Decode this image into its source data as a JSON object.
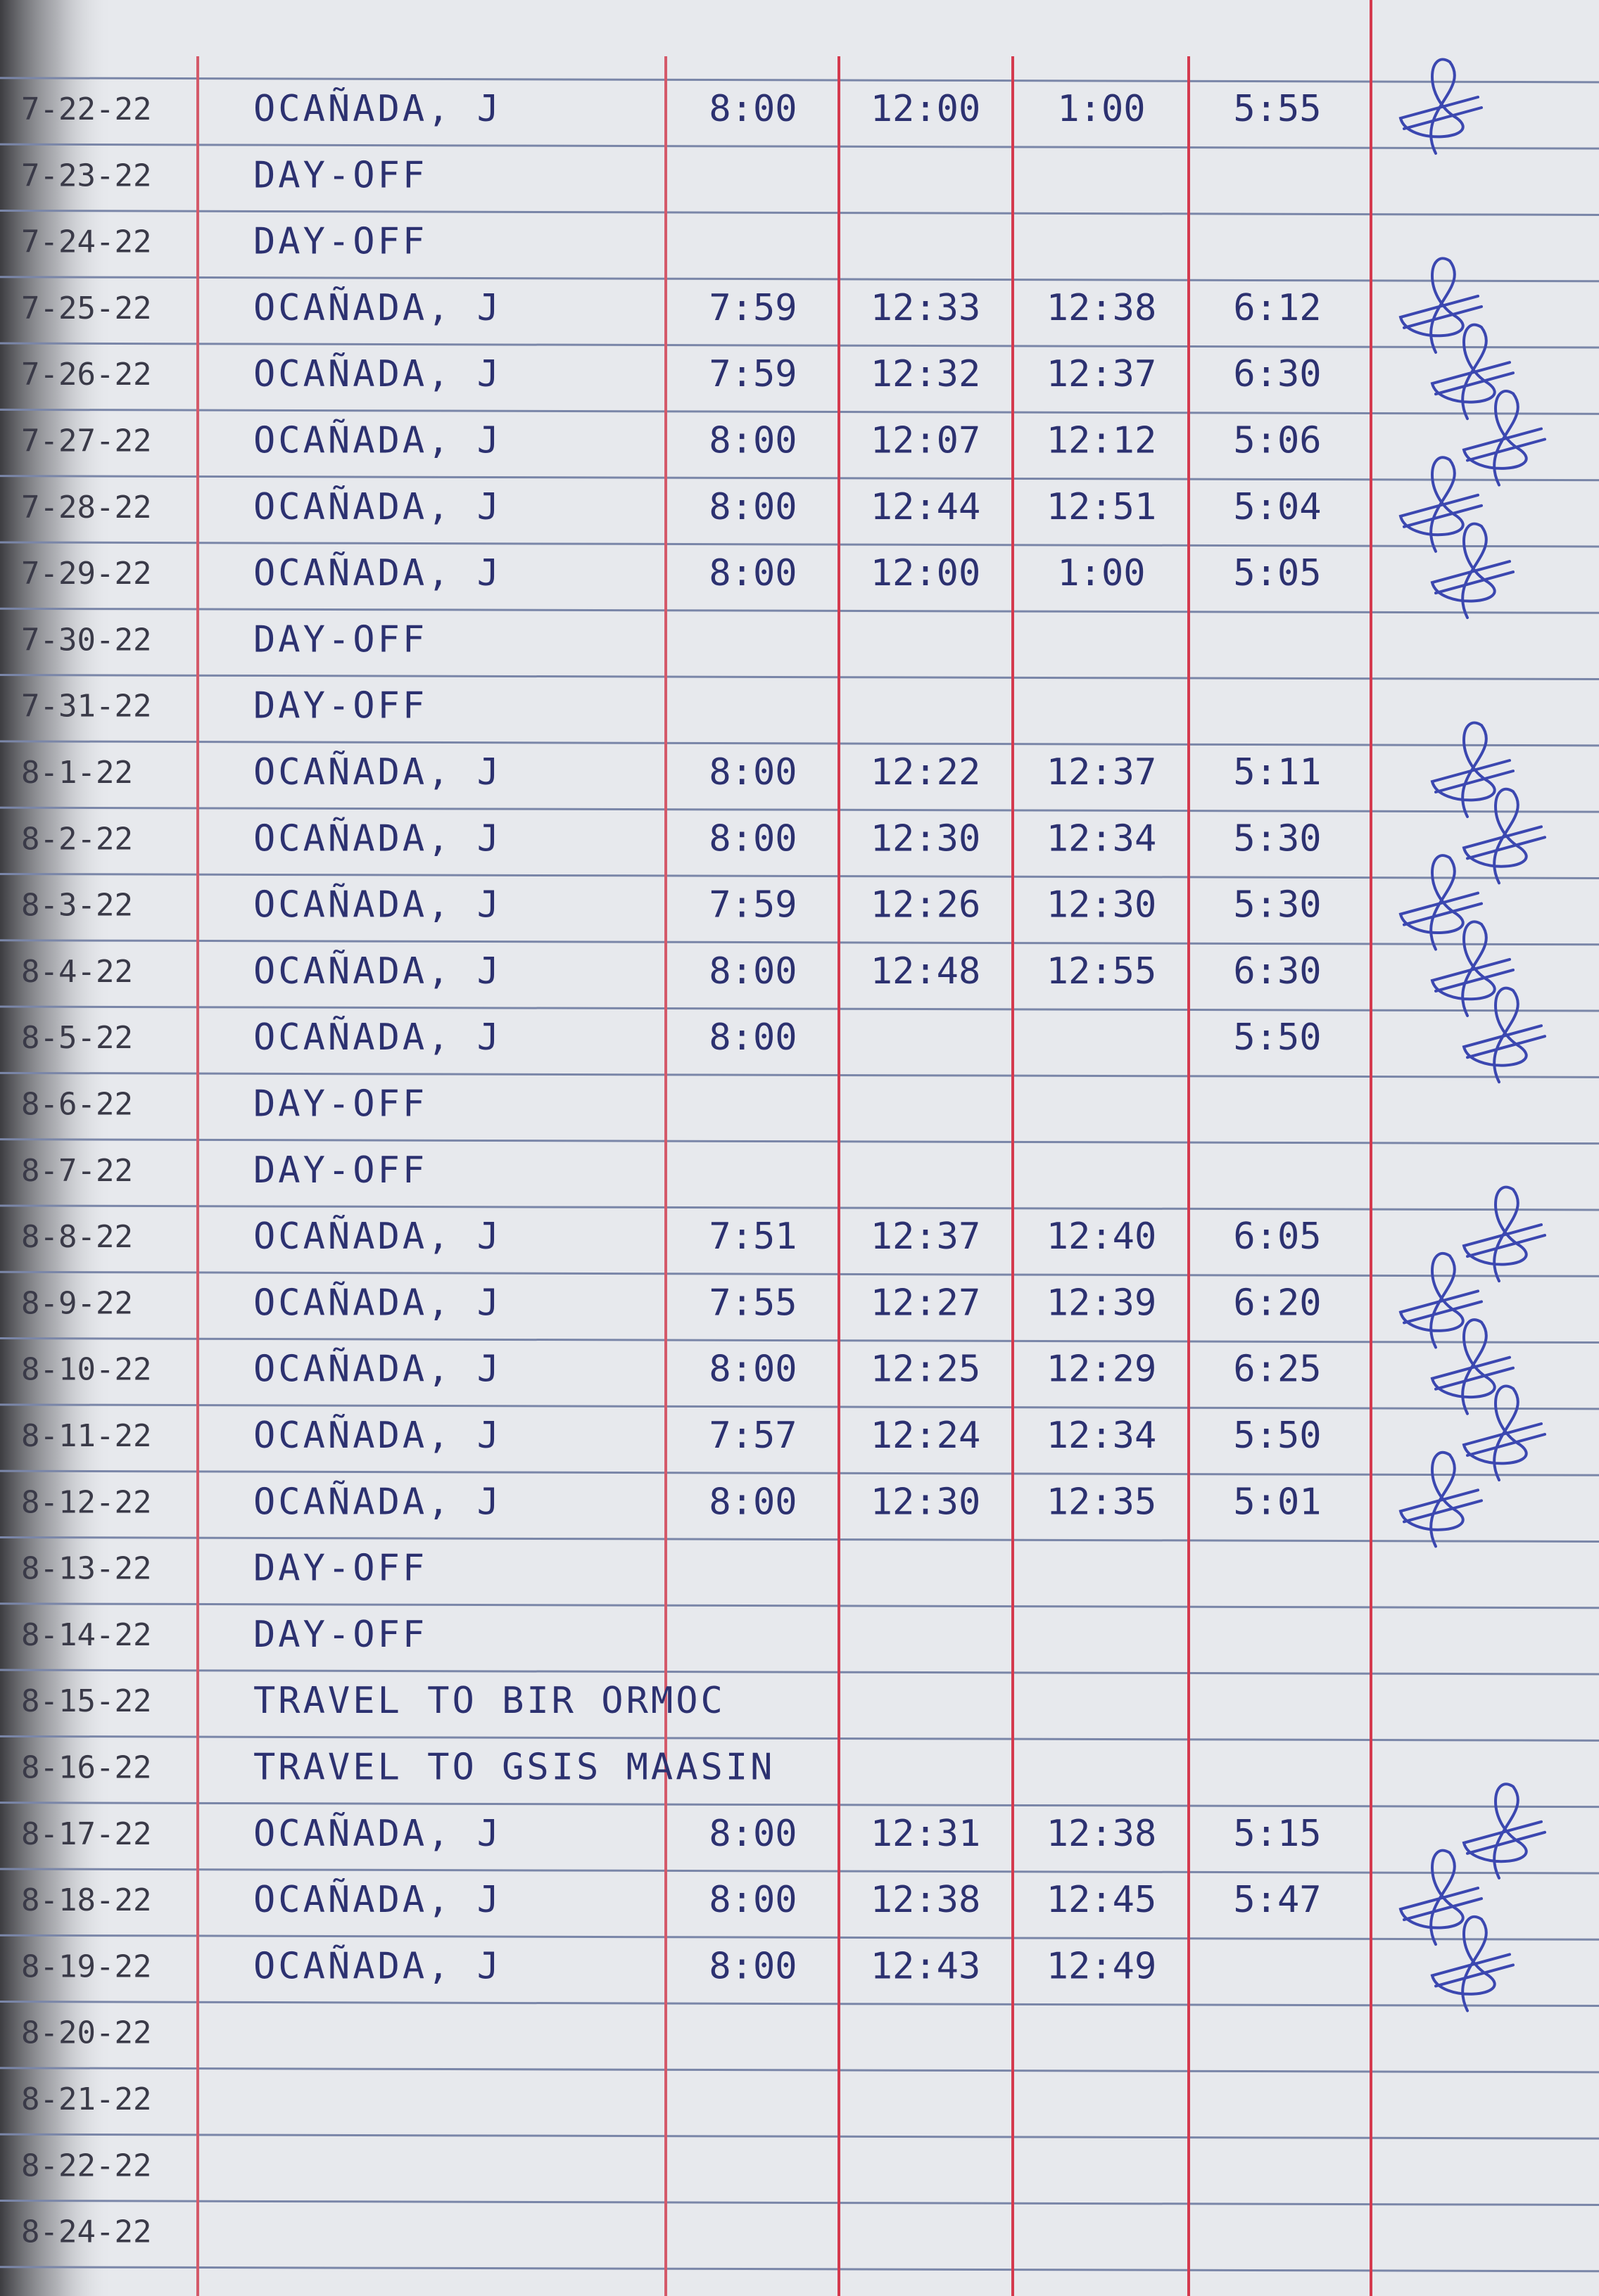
{
  "rows": [
    {
      "date": "7-22-22",
      "name": "OCAÑADA, J",
      "am_in": "8:00",
      "am_out": "12:00",
      "pm_in": "1:00",
      "pm_out": "5:55"
    },
    {
      "date": "7-23-22",
      "name": "DAY-OFF"
    },
    {
      "date": "7-24-22",
      "name": "DAY-OFF"
    },
    {
      "date": "7-25-22",
      "name": "OCAÑADA, J",
      "am_in": "7:59",
      "am_out": "12:33",
      "pm_in": "12:38",
      "pm_out": "6:12"
    },
    {
      "date": "7-26-22",
      "name": "OCAÑADA, J",
      "am_in": "7:59",
      "am_out": "12:32",
      "pm_in": "12:37",
      "pm_out": "6:30"
    },
    {
      "date": "7-27-22",
      "name": "OCAÑADA, J",
      "am_in": "8:00",
      "am_out": "12:07",
      "pm_in": "12:12",
      "pm_out": "5:06"
    },
    {
      "date": "7-28-22",
      "name": "OCAÑADA, J",
      "am_in": "8:00",
      "am_out": "12:44",
      "pm_in": "12:51",
      "pm_out": "5:04"
    },
    {
      "date": "7-29-22",
      "name": "OCAÑADA, J",
      "am_in": "8:00",
      "am_out": "12:00",
      "pm_in": "1:00",
      "pm_out": "5:05"
    },
    {
      "date": "7-30-22",
      "name": "DAY-OFF"
    },
    {
      "date": "7-31-22",
      "name": "DAY-OFF"
    },
    {
      "date": "8-1-22",
      "name": "OCAÑADA, J",
      "am_in": "8:00",
      "am_out": "12:22",
      "pm_in": "12:37",
      "pm_out": "5:11"
    },
    {
      "date": "8-2-22",
      "name": "OCAÑADA, J",
      "am_in": "8:00",
      "am_out": "12:30",
      "pm_in": "12:34",
      "pm_out": "5:30"
    },
    {
      "date": "8-3-22",
      "name": "OCAÑADA, J",
      "am_in": "7:59",
      "am_out": "12:26",
      "pm_in": "12:30",
      "pm_out": "5:30"
    },
    {
      "date": "8-4-22",
      "name": "OCAÑADA, J",
      "am_in": "8:00",
      "am_out": "12:48",
      "pm_in": "12:55",
      "pm_out": "6:30"
    },
    {
      "date": "8-5-22",
      "name": "OCAÑADA, J",
      "am_in": "8:00",
      "pm_out": "5:50"
    },
    {
      "date": "8-6-22",
      "name": "DAY-OFF"
    },
    {
      "date": "8-7-22",
      "name": "DAY-OFF"
    },
    {
      "date": "8-8-22",
      "name": "OCAÑADA, J",
      "am_in": "7:51",
      "am_out": "12:37",
      "pm_in": "12:40",
      "pm_out": "6:05"
    },
    {
      "date": "8-9-22",
      "name": "OCAÑADA, J",
      "am_in": "7:55",
      "am_out": "12:27",
      "pm_in": "12:39",
      "pm_out": "6:20"
    },
    {
      "date": "8-10-22",
      "name": "OCAÑADA, J",
      "am_in": "8:00",
      "am_out": "12:25",
      "pm_in": "12:29",
      "pm_out": "6:25"
    },
    {
      "date": "8-11-22",
      "name": "OCAÑADA, J",
      "am_in": "7:57",
      "am_out": "12:24",
      "pm_in": "12:34",
      "pm_out": "5:50"
    },
    {
      "date": "8-12-22",
      "name": "OCAÑADA, J",
      "am_in": "8:00",
      "am_out": "12:30",
      "pm_in": "12:35",
      "pm_out": "5:01"
    },
    {
      "date": "8-13-22",
      "name": "DAY-OFF"
    },
    {
      "date": "8-14-22",
      "name": "DAY-OFF"
    },
    {
      "date": "8-15-22",
      "name": "TRAVEL TO BIR ORMOC"
    },
    {
      "date": "8-16-22",
      "name": "TRAVEL TO GSIS MAASIN"
    },
    {
      "date": "8-17-22",
      "name": "OCAÑADA, J",
      "am_in": "8:00",
      "am_out": "12:31",
      "pm_in": "12:38",
      "pm_out": "5:15"
    },
    {
      "date": "8-18-22",
      "name": "OCAÑADA, J",
      "am_in": "8:00",
      "am_out": "12:38",
      "pm_in": "12:45",
      "pm_out": "5:47"
    },
    {
      "date": "8-19-22",
      "name": "OCAÑADA, J",
      "am_in": "8:00",
      "am_out": "12:43",
      "pm_in": "12:49"
    },
    {
      "date": "8-20-22"
    },
    {
      "date": "8-21-22"
    },
    {
      "date": "8-22-22"
    },
    {
      "date": "8-24-22"
    }
  ]
}
